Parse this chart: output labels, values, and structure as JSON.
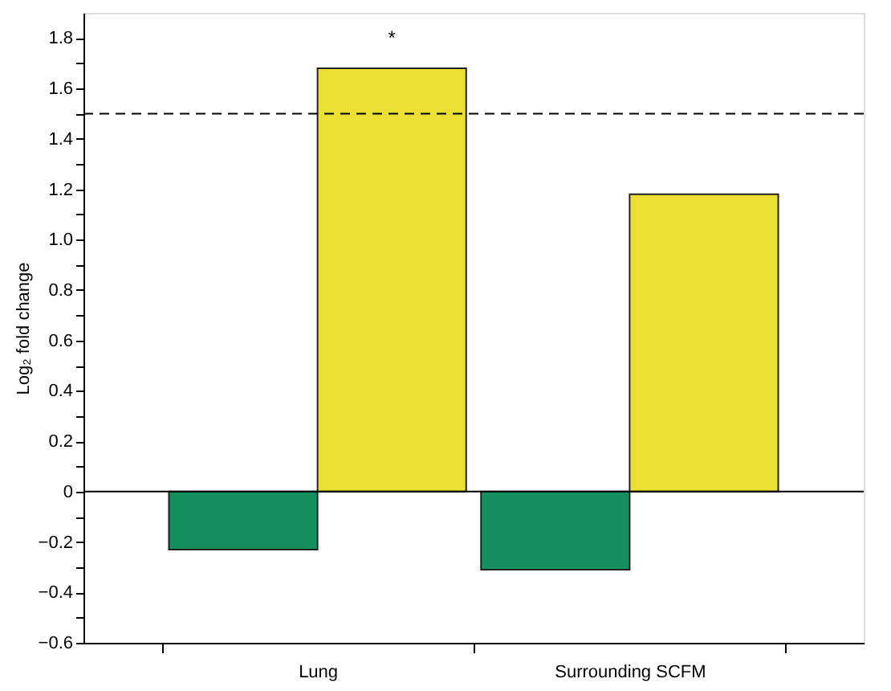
{
  "chart_data": {
    "type": "bar",
    "ylabel": "Log₂ fold change",
    "categories": [
      "Lung",
      "Surrounding SCFM"
    ],
    "series": [
      {
        "color": "#148f5f",
        "values": [
          -0.23,
          -0.31
        ]
      },
      {
        "color": "#ebe033",
        "values": [
          1.68,
          1.18
        ]
      }
    ],
    "ylim": [
      -0.6,
      1.9
    ],
    "yticks": [
      {
        "value": -0.6,
        "label": "−0.6"
      },
      {
        "value": -0.5,
        "label": null
      },
      {
        "value": -0.4,
        "label": "−0.4"
      },
      {
        "value": -0.3,
        "label": null
      },
      {
        "value": -0.2,
        "label": "−0.2"
      },
      {
        "value": -0.1,
        "label": null
      },
      0,
      {
        "value": 0.1,
        "label": null
      },
      0.2,
      {
        "value": 0.3,
        "label": null
      },
      0.4,
      {
        "value": 0.5,
        "label": null
      },
      0.6,
      {
        "value": 0.7,
        "label": null
      },
      0.8,
      {
        "value": 0.9,
        "label": null
      },
      {
        "value": 1,
        "label": "1.0"
      },
      {
        "value": 1.1,
        "label": null
      },
      1.2,
      {
        "value": 1.3,
        "label": null
      },
      1.4,
      {
        "value": 1.5,
        "label": null
      },
      1.6,
      {
        "value": 1.7,
        "label": null
      },
      1.8
    ],
    "ref_lines": [
      {
        "axis": "y",
        "value": 0,
        "color": "#000000",
        "line_style": "solid"
      },
      {
        "axis": "y",
        "value": 1.5,
        "color": "#000000",
        "line_style": "dashed"
      }
    ],
    "annotations": [
      "*"
    ],
    "grid": false,
    "legend": false
  }
}
